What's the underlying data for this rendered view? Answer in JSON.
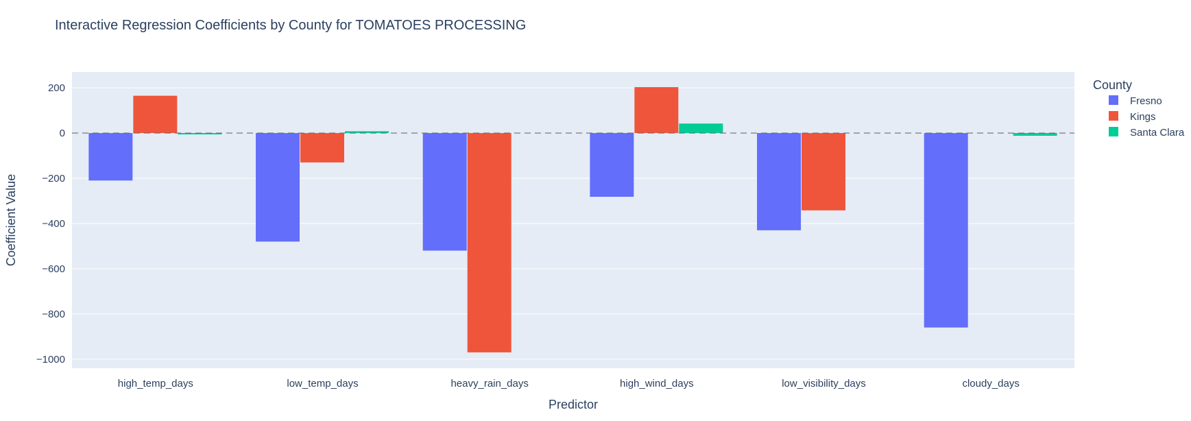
{
  "chart_data": {
    "type": "bar",
    "title": "Interactive Regression Coefficients by County for TOMATOES PROCESSING",
    "xlabel": "Predictor",
    "ylabel": "Coefficient Value",
    "categories": [
      "high_temp_days",
      "low_temp_days",
      "heavy_rain_days",
      "high_wind_days",
      "low_visibility_days",
      "cloudy_days"
    ],
    "series": [
      {
        "name": "Fresno",
        "color": "#636efa",
        "values": [
          -210,
          -480,
          -520,
          -282,
          -430,
          -860
        ]
      },
      {
        "name": "Kings",
        "color": "#ef553b",
        "values": [
          165,
          -130,
          -970,
          203,
          -342,
          0
        ]
      },
      {
        "name": "Santa Clara",
        "color": "#00cc96",
        "values": [
          -6,
          8,
          0,
          42,
          0,
          -12
        ]
      }
    ],
    "ylim": [
      -1040,
      270
    ],
    "yticks": [
      200,
      0,
      -200,
      -400,
      -600,
      -800,
      -1000
    ],
    "ytick_labels": [
      "200",
      "0",
      "−200",
      "−400",
      "−600",
      "−800",
      "−1000"
    ],
    "reference_line": {
      "y": 0,
      "style": "dashed"
    },
    "legend": {
      "title": "County",
      "position": "right"
    },
    "grid": true
  }
}
